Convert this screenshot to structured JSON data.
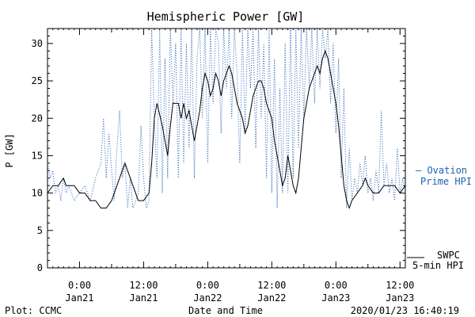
{
  "chart_data": {
    "type": "line",
    "title": "Hemispheric Power [GW]",
    "xlabel": "Date and Time",
    "ylabel": "P [GW]",
    "ylim": [
      0,
      32
    ],
    "xlim_hours": [
      -6,
      61
    ],
    "yticks": [
      0,
      5,
      10,
      15,
      20,
      25,
      30
    ],
    "xticks": [
      {
        "t": "0:00",
        "d": "Jan21",
        "h": 0
      },
      {
        "t": "12:00",
        "d": "Jan21",
        "h": 12
      },
      {
        "t": "0:00",
        "d": "Jan22",
        "h": 24
      },
      {
        "t": "12:00",
        "d": "Jan22",
        "h": 36
      },
      {
        "t": "0:00",
        "d": "Jan23",
        "h": 48
      },
      {
        "t": "12:00",
        "d": "Jan23",
        "h": 60
      }
    ],
    "series": [
      {
        "name": "SWPC 5-min HPI",
        "color": "#000000",
        "style": "solid",
        "points": [
          [
            -6,
            10
          ],
          [
            -5,
            11
          ],
          [
            -4,
            11
          ],
          [
            -3,
            12
          ],
          [
            -2.5,
            11
          ],
          [
            -1,
            11
          ],
          [
            0,
            10
          ],
          [
            1,
            10
          ],
          [
            2,
            9
          ],
          [
            3,
            9
          ],
          [
            4,
            8
          ],
          [
            5,
            8
          ],
          [
            6,
            9
          ],
          [
            7,
            11
          ],
          [
            8,
            13
          ],
          [
            8.5,
            14
          ],
          [
            9,
            13
          ],
          [
            10,
            11
          ],
          [
            11,
            9
          ],
          [
            12,
            9
          ],
          [
            13,
            10
          ],
          [
            13.5,
            14
          ],
          [
            14,
            20
          ],
          [
            14.5,
            22
          ],
          [
            15.5,
            19
          ],
          [
            16,
            17
          ],
          [
            16.5,
            15
          ],
          [
            17,
            19
          ],
          [
            17.5,
            22
          ],
          [
            18.5,
            22
          ],
          [
            19,
            20
          ],
          [
            19.5,
            22
          ],
          [
            20,
            20
          ],
          [
            20.5,
            21
          ],
          [
            21,
            19
          ],
          [
            21.5,
            17
          ],
          [
            22,
            19
          ],
          [
            22.5,
            21
          ],
          [
            23,
            24
          ],
          [
            23.5,
            26
          ],
          [
            24,
            25
          ],
          [
            24.5,
            23
          ],
          [
            25,
            24
          ],
          [
            25.5,
            26
          ],
          [
            26,
            25
          ],
          [
            26.5,
            23
          ],
          [
            27,
            25
          ],
          [
            27.5,
            26
          ],
          [
            28,
            27
          ],
          [
            28.5,
            26
          ],
          [
            29,
            24
          ],
          [
            29.5,
            22
          ],
          [
            30,
            21
          ],
          [
            30.5,
            20
          ],
          [
            31,
            18
          ],
          [
            31.5,
            19
          ],
          [
            32,
            21
          ],
          [
            32.5,
            23
          ],
          [
            33,
            24
          ],
          [
            33.5,
            25
          ],
          [
            34,
            25
          ],
          [
            34.5,
            24
          ],
          [
            35,
            22
          ],
          [
            36,
            20
          ],
          [
            36.5,
            17
          ],
          [
            37,
            15
          ],
          [
            37.5,
            13
          ],
          [
            38,
            11
          ],
          [
            38.5,
            12
          ],
          [
            39,
            15
          ],
          [
            39.5,
            13
          ],
          [
            40,
            11
          ],
          [
            40.5,
            10
          ],
          [
            41,
            12
          ],
          [
            41.5,
            16
          ],
          [
            42,
            20
          ],
          [
            43,
            24
          ],
          [
            44,
            26
          ],
          [
            44.5,
            27
          ],
          [
            45,
            26
          ],
          [
            45.5,
            28
          ],
          [
            46,
            29
          ],
          [
            46.5,
            28
          ],
          [
            47,
            26
          ],
          [
            47.5,
            24
          ],
          [
            48,
            22
          ],
          [
            48.5,
            19
          ],
          [
            49,
            15
          ],
          [
            49.5,
            11
          ],
          [
            50,
            9
          ],
          [
            50.5,
            8
          ],
          [
            51,
            9
          ],
          [
            52,
            10
          ],
          [
            53,
            11
          ],
          [
            53.5,
            12
          ],
          [
            54,
            11
          ],
          [
            55,
            10
          ],
          [
            56,
            10
          ],
          [
            57,
            11
          ],
          [
            58,
            11
          ],
          [
            59,
            11
          ],
          [
            60,
            10
          ],
          [
            61,
            11
          ]
        ]
      },
      {
        "name": "Ovation Prime HPI",
        "color": "#1f5fb5",
        "style": "dotted",
        "points": [
          [
            -6,
            14
          ],
          [
            -5.5,
            12
          ],
          [
            -5,
            13
          ],
          [
            -4.5,
            10
          ],
          [
            -4,
            11
          ],
          [
            -3.5,
            9
          ],
          [
            -3,
            12
          ],
          [
            -2.5,
            10
          ],
          [
            -2,
            11
          ],
          [
            -1,
            9
          ],
          [
            0,
            10
          ],
          [
            1,
            11
          ],
          [
            2,
            9
          ],
          [
            3,
            12
          ],
          [
            4,
            14
          ],
          [
            4.5,
            20
          ],
          [
            5,
            12
          ],
          [
            5.5,
            18
          ],
          [
            6,
            13
          ],
          [
            6.5,
            9
          ],
          [
            7,
            16
          ],
          [
            7.5,
            21
          ],
          [
            8,
            12
          ],
          [
            8.5,
            14
          ],
          [
            9,
            8
          ],
          [
            9.5,
            12
          ],
          [
            10,
            8
          ],
          [
            11,
            10
          ],
          [
            11.5,
            19
          ],
          [
            12,
            12
          ],
          [
            12.5,
            8
          ],
          [
            13,
            9
          ],
          [
            13.5,
            32
          ],
          [
            14,
            20
          ],
          [
            14.5,
            12
          ],
          [
            15,
            32
          ],
          [
            15.5,
            10
          ],
          [
            16,
            28
          ],
          [
            16.5,
            12
          ],
          [
            17,
            32
          ],
          [
            17.5,
            22
          ],
          [
            18,
            30
          ],
          [
            18.5,
            12
          ],
          [
            19,
            32
          ],
          [
            19.5,
            14
          ],
          [
            20,
            30
          ],
          [
            20.5,
            16
          ],
          [
            21,
            32
          ],
          [
            21.5,
            12
          ],
          [
            22,
            28
          ],
          [
            22.5,
            32
          ],
          [
            23,
            20
          ],
          [
            23.5,
            32
          ],
          [
            24,
            14
          ],
          [
            24.5,
            32
          ],
          [
            25,
            22
          ],
          [
            25.5,
            32
          ],
          [
            26,
            30
          ],
          [
            26.5,
            18
          ],
          [
            27,
            32
          ],
          [
            27.5,
            24
          ],
          [
            28,
            32
          ],
          [
            28.5,
            20
          ],
          [
            29,
            32
          ],
          [
            29.5,
            26
          ],
          [
            30,
            14
          ],
          [
            30.5,
            32
          ],
          [
            31,
            18
          ],
          [
            31.5,
            32
          ],
          [
            32,
            24
          ],
          [
            32.5,
            32
          ],
          [
            33,
            16
          ],
          [
            33.5,
            32
          ],
          [
            34,
            20
          ],
          [
            34.5,
            30
          ],
          [
            35,
            12
          ],
          [
            35.5,
            32
          ],
          [
            36,
            10
          ],
          [
            36.5,
            28
          ],
          [
            37,
            8
          ],
          [
            37.5,
            24
          ],
          [
            38,
            10
          ],
          [
            38.5,
            30
          ],
          [
            39,
            10
          ],
          [
            39.5,
            32
          ],
          [
            40,
            12
          ],
          [
            40.5,
            32
          ],
          [
            41,
            16
          ],
          [
            41.5,
            32
          ],
          [
            42,
            20
          ],
          [
            42.5,
            32
          ],
          [
            43,
            24
          ],
          [
            43.5,
            32
          ],
          [
            44,
            22
          ],
          [
            44.5,
            32
          ],
          [
            45,
            24
          ],
          [
            45.5,
            32
          ],
          [
            46,
            28
          ],
          [
            46.5,
            32
          ],
          [
            47,
            22
          ],
          [
            47.5,
            30
          ],
          [
            48,
            18
          ],
          [
            48.5,
            28
          ],
          [
            49,
            12
          ],
          [
            49.5,
            24
          ],
          [
            50,
            8
          ],
          [
            50.5,
            16
          ],
          [
            51,
            9
          ],
          [
            51.5,
            12
          ],
          [
            52,
            10
          ],
          [
            52.5,
            14
          ],
          [
            53,
            11
          ],
          [
            53.5,
            15
          ],
          [
            54,
            10
          ],
          [
            54.5,
            12
          ],
          [
            55,
            9
          ],
          [
            55.5,
            13
          ],
          [
            56,
            10
          ],
          [
            56.5,
            21
          ],
          [
            57,
            11
          ],
          [
            57.5,
            14
          ],
          [
            58,
            10
          ],
          [
            58.5,
            12
          ],
          [
            59,
            9
          ],
          [
            59.5,
            16
          ],
          [
            60,
            10
          ],
          [
            60.5,
            12
          ],
          [
            61,
            10
          ]
        ]
      }
    ],
    "legend": [
      {
        "line1": "— Ovation",
        "line2": "Prime HPI",
        "color": "#1f5fb5",
        "position": "right-middle"
      },
      {
        "line1": "SWPC",
        "line2": "5-min HPI",
        "color": "#000000",
        "position": "right-bottom"
      }
    ]
  },
  "footer": {
    "left": "Plot: CCMC",
    "right": "2020/01/23 16:40:19"
  }
}
